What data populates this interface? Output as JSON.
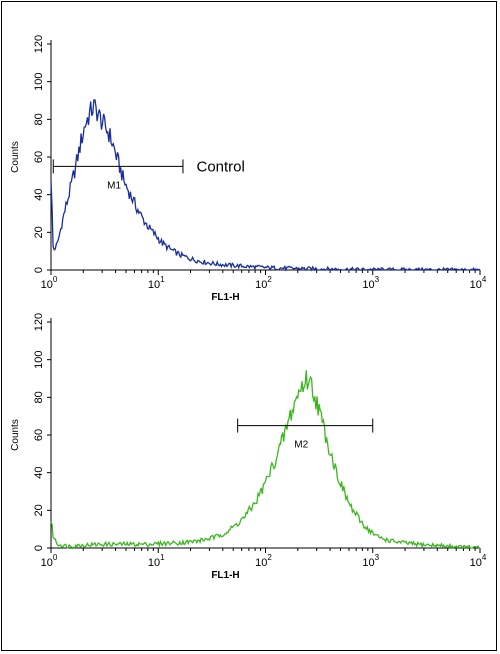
{
  "chart_data": [
    {
      "type": "line",
      "title": "",
      "xlabel": "FL1-H",
      "ylabel": "Counts",
      "xscale": "log",
      "xlim": [
        1,
        10000
      ],
      "ylim": [
        0,
        120
      ],
      "yticks": [
        0,
        20,
        40,
        60,
        80,
        100,
        120
      ],
      "xticks": [
        {
          "value": 1,
          "base": "10",
          "exp": "0"
        },
        {
          "value": 10,
          "base": "10",
          "exp": "1"
        },
        {
          "value": 100,
          "base": "10",
          "exp": "2"
        },
        {
          "value": 1000,
          "base": "10",
          "exp": "3"
        },
        {
          "value": 10000,
          "base": "10",
          "exp": "4"
        }
      ],
      "series": [
        {
          "color": "#1a2e9e",
          "x": [
            1.0,
            1.05,
            1.15,
            1.3,
            1.5,
            1.7,
            1.9,
            2.1,
            2.3,
            2.5,
            2.7,
            2.9,
            3.2,
            3.5,
            3.9,
            4.3,
            4.8,
            5.5,
            6.3,
            7.2,
            8.3,
            9.6,
            11,
            13,
            16,
            20,
            25,
            32,
            40,
            55,
            75,
            100,
            140,
            200,
            300,
            450,
            700,
            1000,
            2000,
            5000,
            10000
          ],
          "y": [
            50,
            10,
            14,
            28,
            42,
            55,
            68,
            78,
            83,
            87,
            84,
            80,
            76,
            72,
            64,
            56,
            47,
            40,
            33,
            27,
            22,
            18,
            14,
            11,
            8,
            6,
            4.5,
            3.5,
            2.8,
            2.2,
            1.7,
            1.3,
            1.0,
            0.8,
            0.6,
            0.4,
            0.3,
            0.2,
            0.1,
            0.1,
            0
          ]
        }
      ],
      "markers": [
        {
          "label": "M1",
          "x1": 1.05,
          "x2": 17,
          "y": 55
        }
      ],
      "annotations": [
        {
          "text": "Control",
          "x": 27,
          "y": 55
        }
      ]
    },
    {
      "type": "line",
      "title": "",
      "xlabel": "FL1-H",
      "ylabel": "Counts",
      "xscale": "log",
      "xlim": [
        1,
        10000
      ],
      "ylim": [
        0,
        120
      ],
      "yticks": [
        0,
        20,
        40,
        60,
        80,
        100,
        120
      ],
      "xticks": [
        {
          "value": 1,
          "base": "10",
          "exp": "0"
        },
        {
          "value": 10,
          "base": "10",
          "exp": "1"
        },
        {
          "value": 100,
          "base": "10",
          "exp": "2"
        },
        {
          "value": 1000,
          "base": "10",
          "exp": "3"
        },
        {
          "value": 10000,
          "base": "10",
          "exp": "4"
        }
      ],
      "series": [
        {
          "color": "#3cb81e",
          "x": [
            1.0,
            1.05,
            1.15,
            1.4,
            2,
            3,
            5,
            8,
            12,
            18,
            25,
            35,
            45,
            55,
            65,
            80,
            95,
            110,
            130,
            150,
            170,
            190,
            210,
            230,
            250,
            270,
            300,
            340,
            390,
            450,
            520,
            620,
            750,
            900,
            1100,
            1400,
            1800,
            2500,
            3500,
            5000,
            7000,
            10000
          ],
          "y": [
            15,
            6,
            2,
            1,
            1.5,
            2,
            2,
            2,
            2.5,
            3,
            4,
            6,
            9,
            13,
            17,
            24,
            32,
            40,
            50,
            60,
            70,
            78,
            84,
            88,
            90,
            86,
            78,
            66,
            54,
            42,
            32,
            22,
            15,
            10,
            6,
            4,
            3,
            2,
            1.5,
            1,
            0.5,
            0
          ]
        }
      ],
      "markers": [
        {
          "label": "M2",
          "x1": 55,
          "x2": 1000,
          "y": 65
        }
      ],
      "annotations": []
    }
  ]
}
